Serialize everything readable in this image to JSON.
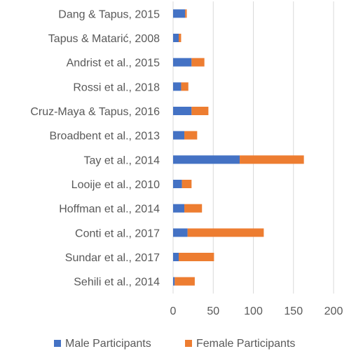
{
  "chart_data": {
    "type": "bar",
    "orientation": "horizontal",
    "stacked": true,
    "categories": [
      "Dang & Tapus, 2015",
      "Tapus & Matarić, 2008",
      "Andrist et al., 2015",
      "Rossi et al., 2018",
      "Cruz-Maya & Tapus, 2016",
      "Broadbent et al., 2013",
      "Tay et al., 2014",
      "Looije et al., 2010",
      "Hoffman et al., 2014",
      "Conti et al., 2017",
      "Sundar et al., 2017",
      "Sehili et al., 2014"
    ],
    "series": [
      {
        "name": "Male Participants",
        "color": "#4472C4",
        "values": [
          15,
          7,
          23,
          10,
          23,
          14,
          83,
          11,
          14,
          18,
          7,
          2
        ]
      },
      {
        "name": "Female Participants",
        "color": "#ED7D31",
        "values": [
          2,
          3,
          16,
          9,
          21,
          16,
          80,
          12,
          22,
          95,
          44,
          25
        ]
      }
    ],
    "xlim": [
      0,
      200
    ],
    "xticks": [
      "0",
      "50",
      "100",
      "150",
      "200"
    ],
    "xtick_values": [
      0,
      50,
      100,
      150,
      200
    ],
    "grid": "vertical",
    "legend": "bottom"
  }
}
